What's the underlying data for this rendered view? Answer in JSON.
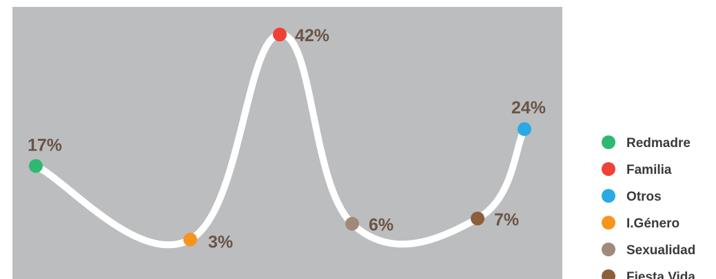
{
  "chart_data": {
    "type": "line",
    "categories": [
      "Redmadre",
      "I.Género",
      "Familia",
      "Sexualidad",
      "Fiesta Vida",
      "Otros"
    ],
    "values": [
      17,
      3,
      42,
      6,
      7,
      24
    ],
    "data_labels": [
      "17%",
      "3%",
      "42%",
      "6%",
      "7%",
      "24%"
    ],
    "point_colors": [
      "#2eb872",
      "#f7941d",
      "#ef4136",
      "#a08a7c",
      "#8b5e3c",
      "#29aae2"
    ],
    "ylim": [
      0,
      45
    ],
    "grid": false,
    "line_style": "smooth",
    "legend_placement": "right",
    "legend": [
      {
        "label": "Redmadre",
        "color": "#2eb872"
      },
      {
        "label": "Familia",
        "color": "#ef4136"
      },
      {
        "label": "Otros",
        "color": "#29aae2"
      },
      {
        "label": "I.Género",
        "color": "#f7941d"
      },
      {
        "label": "Sexualidad",
        "color": "#a08a7c"
      },
      {
        "label": "Fiesta Vida",
        "color": "#8b5e3c"
      }
    ],
    "colors": {
      "plot_background": "#bcbdbf",
      "line": "#ffffff",
      "label_text": "#6b5444",
      "legend_text": "#3a3a3a"
    }
  }
}
